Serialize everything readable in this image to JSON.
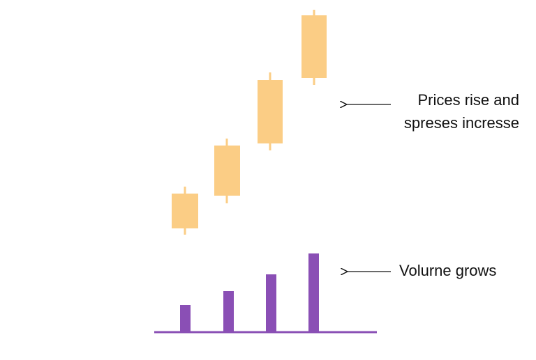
{
  "annotations": {
    "prices": [
      "Prices rise and",
      "spreses incresse"
    ],
    "volume": "Volurne grows"
  }
}
